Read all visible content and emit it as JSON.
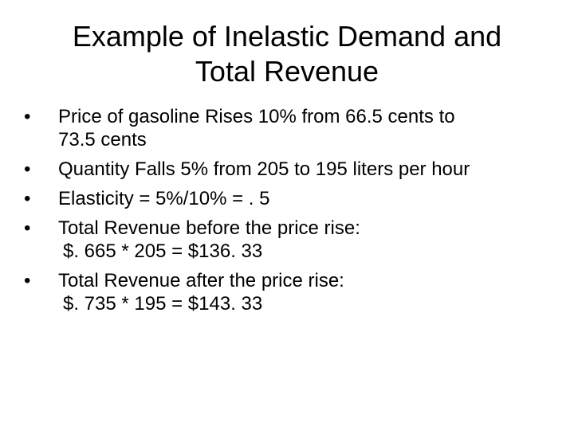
{
  "slide": {
    "title_line1": "Example of Inelastic Demand and",
    "title_line2": "Total Revenue",
    "bullet_glyph": "•",
    "bullets": [
      {
        "line1": "Price of gasoline Rises 10% from 66.5 cents  to",
        "line2": "73.5 cents"
      },
      {
        "line1": "Quantity Falls 5% from 205 to 195 liters per hour"
      },
      {
        "line1": "Elasticity = 5%/10% = . 5"
      },
      {
        "line1": "Total Revenue before the price rise:",
        "line2": "$. 665 * 205 =  $136. 33"
      },
      {
        "line1": "Total Revenue after the price rise:",
        "line2": "$. 735 * 195 =  $143. 33"
      }
    ]
  }
}
